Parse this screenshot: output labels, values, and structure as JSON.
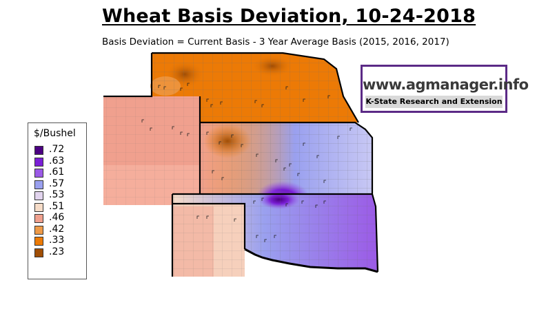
{
  "title": "Wheat Basis Deviation, 10-24-2018",
  "subtitle": "Basis Deviation = Current Basis - 3 Year Average Basis (2015, 2016, 2017)",
  "logo": {
    "url_text": "www.agmanager.info",
    "org_text": "K-State Research and Extension",
    "border_color": "#5b2a86"
  },
  "legend": {
    "title": "$/Bushel",
    "items": [
      {
        "label": ".72",
        "color": "#4b0082"
      },
      {
        "label": ".63",
        "color": "#7a1fd6"
      },
      {
        "label": ".61",
        "color": "#9b5ae6"
      },
      {
        "label": ".57",
        "color": "#9aa0ef"
      },
      {
        "label": ".53",
        "color": "#e2d4ee"
      },
      {
        "label": ".51",
        "color": "#f6dcc8"
      },
      {
        "label": ".46",
        "color": "#f0a08e"
      },
      {
        "label": ".42",
        "color": "#ee9a48"
      },
      {
        "label": ".33",
        "color": "#ec7a06"
      },
      {
        "label": ".23",
        "color": "#a04e06"
      }
    ]
  }
}
